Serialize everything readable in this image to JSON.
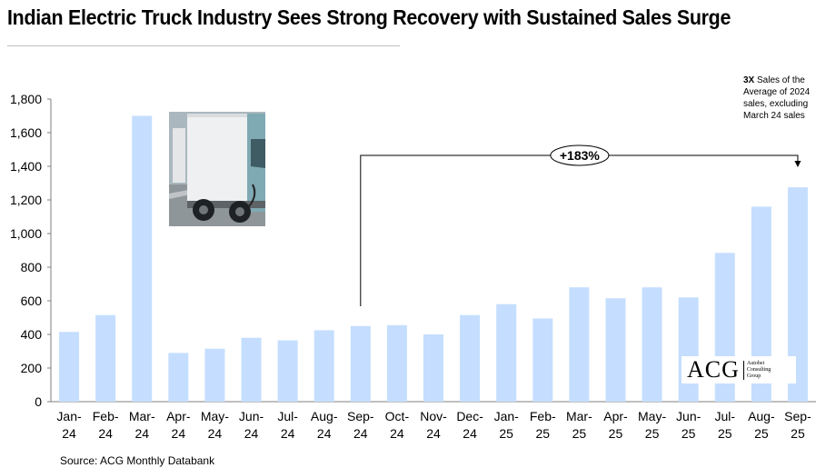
{
  "title": "Indian Electric Truck Industry Sees Strong Recovery with Sustained Sales Surge",
  "source": "Source: ACG Monthly Databank",
  "annotation": {
    "bold": "3X",
    "rest": " Sales of the Average of 2024 sales, excluding March 24 sales"
  },
  "growth_label": "+183%",
  "logo": {
    "main": "ACG",
    "sub": [
      "Autobei",
      "Consulting",
      "Group"
    ]
  },
  "photo_icon": "electric-truck-photo",
  "colors": {
    "bar": "#c5deff",
    "axis": "#7f7f7f"
  },
  "chart_data": {
    "type": "bar",
    "categories": [
      [
        "Jan-",
        "24"
      ],
      [
        "Feb-",
        "24"
      ],
      [
        "Mar-",
        "24"
      ],
      [
        "Apr-",
        "24"
      ],
      [
        "May-",
        "24"
      ],
      [
        "Jun-",
        "24"
      ],
      [
        "Jul-",
        "24"
      ],
      [
        "Aug-",
        "24"
      ],
      [
        "Sep-",
        "24"
      ],
      [
        "Oct-",
        "24"
      ],
      [
        "Nov-",
        "24"
      ],
      [
        "Dec-",
        "24"
      ],
      [
        "Jan-",
        "25"
      ],
      [
        "Feb-",
        "25"
      ],
      [
        "Mar-",
        "25"
      ],
      [
        "Apr-",
        "25"
      ],
      [
        "May-",
        "25"
      ],
      [
        "Jun-",
        "25"
      ],
      [
        "Jul-",
        "25"
      ],
      [
        "Aug-",
        "25"
      ],
      [
        "Sep-",
        "25"
      ]
    ],
    "values": [
      415,
      515,
      1700,
      290,
      315,
      380,
      365,
      425,
      450,
      455,
      400,
      515,
      580,
      495,
      680,
      615,
      680,
      620,
      885,
      1160,
      1275
    ],
    "ylim": [
      0,
      1800
    ],
    "yticks": [
      "0",
      "200",
      "400",
      "600",
      "800",
      "1,000",
      "1,200",
      "1,400",
      "1,600",
      "1,800"
    ],
    "grid": false,
    "legend": "none",
    "bracket": {
      "from": "Sep-24",
      "to": "Sep-25"
    }
  }
}
